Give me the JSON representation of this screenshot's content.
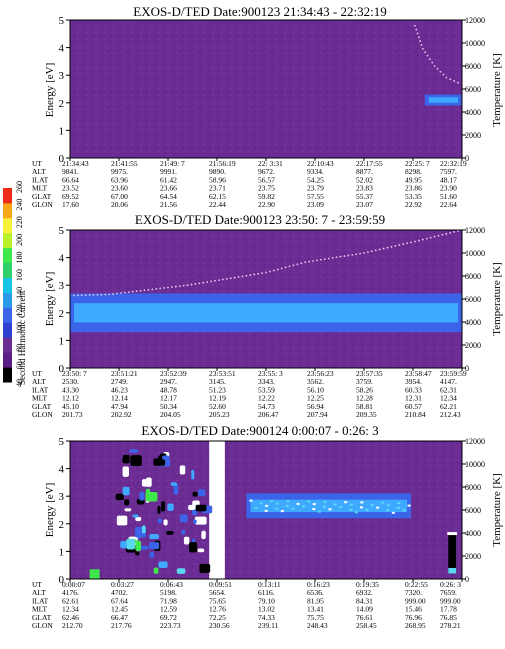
{
  "colors": {
    "background": "#6b2d93",
    "band": "#3b64e8",
    "band_core": "#3fa8ff",
    "cyan": "#5ad8f0",
    "green": "#3ee84a",
    "yellow": "#f6f23a",
    "white": "#ffffff",
    "black": "#000000",
    "red": "#ee2a1a"
  },
  "colorbar": {
    "label": "Second Harmonic Current",
    "ticks": [
      "40",
      "60",
      "80",
      "100",
      "120",
      "140",
      "160",
      "180",
      "200",
      "220",
      "240",
      "260"
    ],
    "colors": [
      "#000000",
      "#5a1f86",
      "#6b2d93",
      "#2f3fd0",
      "#3b64e8",
      "#2a9be8",
      "#16c4e8",
      "#2fd06a",
      "#3ee84a",
      "#b8f02a",
      "#f6f23a",
      "#f6a81a",
      "#ee2a1a"
    ]
  },
  "chart_data": [
    {
      "type": "heatmap",
      "title": "EXOS-D/TED   Date:900123  21:34:43 - 22:32:19",
      "ylabel": "Energy [eV]",
      "ylabel_right": "Temperature [K]",
      "ylim": [
        0,
        5
      ],
      "yticks": [
        "0",
        "1",
        "2",
        "3",
        "4",
        "5"
      ],
      "ylim_right": [
        0,
        12000
      ],
      "yticks_right": [
        "0",
        "2000",
        "4000",
        "6000",
        "8000",
        "10000",
        "12000"
      ],
      "table": {
        "rows": [
          "UT",
          "ALT",
          "ILAT",
          "MLT",
          "GLAT",
          "GLON"
        ],
        "columns": [
          [
            "21:34:43",
            "9841.",
            "66.64",
            "23.52",
            "69.52",
            "17.60"
          ],
          [
            "21:41:55",
            "9975.",
            "63.96",
            "23.60",
            "67.00",
            "20.06"
          ],
          [
            "21:49: 7",
            "9991.",
            "61.42",
            "23.66",
            "64.54",
            "21.56"
          ],
          [
            "21:56:19",
            "9890.",
            "58.96",
            "23.71",
            "62.15",
            "22.44"
          ],
          [
            "22: 3:31",
            "9672.",
            "56.57",
            "23.75",
            "59.82",
            "22.90"
          ],
          [
            "22:10:43",
            "9334.",
            "54.25",
            "23.79",
            "57.55",
            "23.09"
          ],
          [
            "22:17:55",
            "8877.",
            "52.02",
            "23.83",
            "55.37",
            "23.07"
          ],
          [
            "22:25: 7",
            "8298.",
            "49.95",
            "23.86",
            "53.35",
            "22.92"
          ],
          [
            "22:32:19",
            "7597.",
            "48.17",
            "23.90",
            "51.60",
            "22.64"
          ]
        ]
      },
      "features": [
        {
          "kind": "band",
          "x_range": [
            0.905,
            1.0
          ],
          "energy_range": [
            1.9,
            2.3
          ],
          "note": "ion band onset near end"
        },
        {
          "kind": "temperature_trace",
          "points": [
            [
              0.88,
              11500
            ],
            [
              0.9,
              9500
            ],
            [
              0.93,
              8000
            ],
            [
              0.96,
              7000
            ],
            [
              1.0,
              6400
            ]
          ]
        }
      ]
    },
    {
      "type": "heatmap",
      "title": "EXOS-D/TED   Date:900123  23:50: 7 - 23:59:59",
      "ylabel": "Energy [eV]",
      "ylabel_right": "Temperature [K]",
      "ylim": [
        0,
        5
      ],
      "yticks": [
        "0",
        "1",
        "2",
        "3",
        "4",
        "5"
      ],
      "ylim_right": [
        0,
        12000
      ],
      "yticks_right": [
        "0",
        "2000",
        "4000",
        "6000",
        "8000",
        "10000",
        "12000"
      ],
      "table": {
        "rows": [
          "UT",
          "ALT",
          "ILAT",
          "MLT",
          "GLAT",
          "GLON"
        ],
        "columns": [
          [
            "23:50: 7",
            "2530.",
            "43.30",
            "12.12",
            "45.10",
            "201.73"
          ],
          [
            "23:51:21",
            "2749.",
            "46.23",
            "12.14",
            "47.94",
            "202.92"
          ],
          [
            "23:52:39",
            "2947.",
            "48.78",
            "12.17",
            "50.34",
            "204.05"
          ],
          [
            "23:53:51",
            "3145.",
            "51.23",
            "12.19",
            "52.60",
            "205.23"
          ],
          [
            "23:55: 3",
            "3343.",
            "53.59",
            "12.22",
            "54.73",
            "206.47"
          ],
          [
            "23:56:23",
            "3562.",
            "56.10",
            "12.25",
            "56.94",
            "207.94"
          ],
          [
            "23:57:35",
            "3759.",
            "58.26",
            "12.28",
            "58.81",
            "209.35"
          ],
          [
            "23:58:47",
            "3954.",
            "60.33",
            "12.31",
            "60.57",
            "210.84"
          ],
          [
            "23:59:59",
            "4147.",
            "62.31",
            "12.34",
            "62.21",
            "212.43"
          ]
        ]
      },
      "features": [
        {
          "kind": "band",
          "x_range": [
            0.0,
            1.0
          ],
          "energy_range": [
            1.3,
            2.7
          ],
          "note": "broad ion band"
        },
        {
          "kind": "temperature_trace",
          "points": [
            [
              0.0,
              6300
            ],
            [
              0.1,
              6400
            ],
            [
              0.3,
              7200
            ],
            [
              0.5,
              8300
            ],
            [
              0.6,
              9200
            ],
            [
              0.75,
              10000
            ],
            [
              0.88,
              11000
            ],
            [
              1.0,
              12000
            ]
          ]
        }
      ]
    },
    {
      "type": "heatmap",
      "title": "EXOS-D/TED   Date:900124  0:00:07 - 0:26: 3",
      "ylabel": "Energy [eV]",
      "ylabel_right": "Temperature [K]",
      "ylim": [
        0,
        5
      ],
      "yticks": [
        "0",
        "1",
        "2",
        "3",
        "4",
        "5"
      ],
      "ylim_right": [
        0,
        12000
      ],
      "yticks_right": [
        "0",
        "2000",
        "4000",
        "6000",
        "8000",
        "10000",
        "12000"
      ],
      "table": {
        "rows": [
          "UT",
          "ALT",
          "ILAT",
          "MLT",
          "GLAT",
          "GLON"
        ],
        "columns": [
          [
            "0:00:07",
            "4176.",
            "62.61",
            "12.34",
            "62.46",
            "212.70"
          ],
          [
            "0:03:27",
            "4702.",
            "67.64",
            "12.45",
            "66.47",
            "217.76"
          ],
          [
            "0:06:43",
            "5198.",
            "71.98",
            "12.59",
            "69.72",
            "223.73"
          ],
          [
            "0:09:51",
            "5654.",
            "75.65",
            "12.76",
            "72.25",
            "230.56"
          ],
          [
            "0:13:11",
            "6116.",
            "79.10",
            "13.02",
            "74.33",
            "239.11"
          ],
          [
            "0:16:23",
            "6536.",
            "81.95",
            "13.41",
            "75.75",
            "248.43"
          ],
          [
            "0:19:35",
            "6932.",
            "84.31",
            "14.09",
            "76.61",
            "258.45"
          ],
          [
            "0:22:55",
            "7320.",
            "999.00",
            "15.46",
            "76.96",
            "268.95"
          ],
          [
            "0:26: 3",
            "7659.",
            "999.00",
            "17.78",
            "76.85",
            "278.21"
          ]
        ]
      },
      "features": [
        {
          "kind": "gap",
          "x_range": [
            0.355,
            0.395
          ],
          "note": "white data gap"
        },
        {
          "kind": "patchy",
          "x_range": [
            0.0,
            0.35
          ],
          "energy_range": [
            0,
            5
          ]
        },
        {
          "kind": "band",
          "x_range": [
            0.45,
            0.87
          ],
          "energy_range": [
            2.2,
            3.1
          ]
        },
        {
          "kind": "spike",
          "x_range": [
            0.965,
            0.985
          ],
          "energy_range": [
            0.2,
            1.6
          ]
        }
      ]
    }
  ]
}
